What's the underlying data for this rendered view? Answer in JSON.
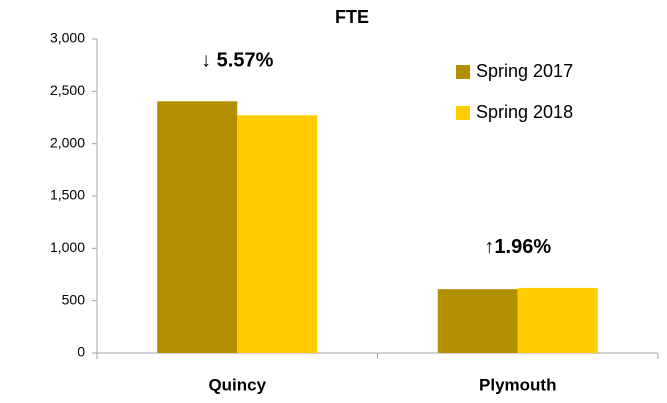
{
  "chart_data": {
    "type": "bar",
    "title": "FTE",
    "categories": [
      "Quincy",
      "Plymouth"
    ],
    "series": [
      {
        "name": "Spring 2017",
        "color": "#b38f00",
        "values": [
          2405,
          610
        ]
      },
      {
        "name": "Spring 2018",
        "color": "#ffcc00",
        "values": [
          2271,
          622
        ]
      }
    ],
    "ylim": [
      0,
      3000
    ],
    "yticks": [
      0,
      {
        "value": 500,
        "label": "500"
      },
      {
        "value": 1000,
        "label": "1,000"
      },
      {
        "value": 1500,
        "label": "1,500"
      },
      {
        "value": 2000,
        "label": "2,000"
      },
      {
        "value": 2500,
        "label": "2,500"
      },
      {
        "value": 3000,
        "label": "3,000"
      }
    ],
    "annotations": [
      "↓ 5.57%",
      "↑1.96%"
    ],
    "legend": "upper right",
    "grid": false
  }
}
